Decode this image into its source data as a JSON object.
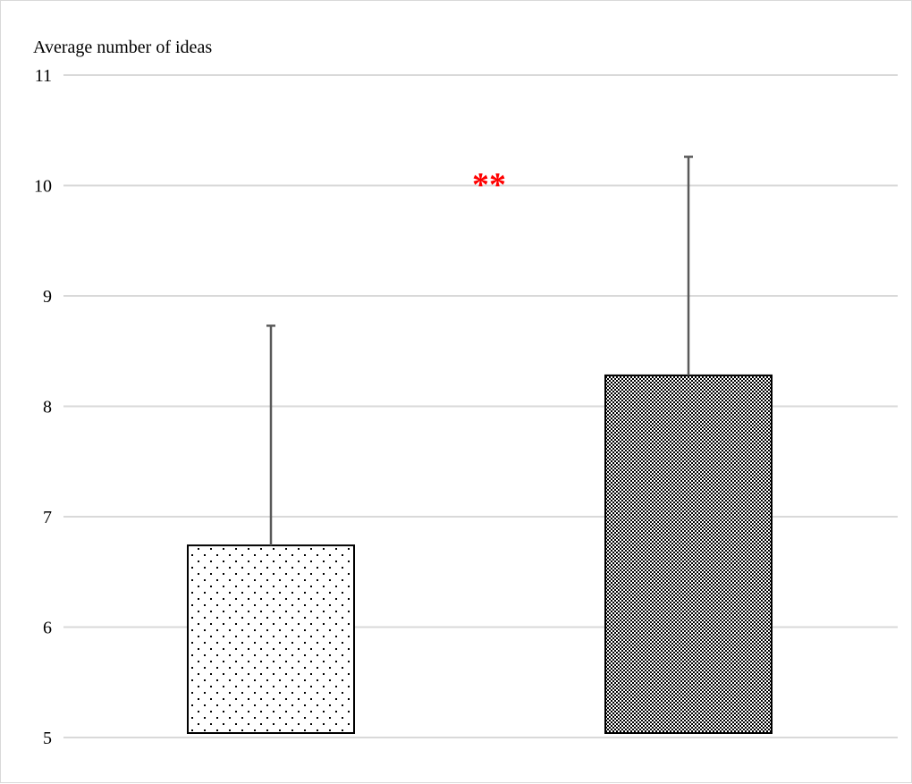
{
  "chart_data": {
    "type": "bar",
    "ylabel": "Average number of ideas",
    "ylim": [
      5,
      11
    ],
    "yticks": [
      "5",
      "6",
      "7",
      "8",
      "9",
      "10",
      "11"
    ],
    "grid": true,
    "categories": [
      "",
      ""
    ],
    "values": [
      6.74,
      8.28
    ],
    "error_upper": [
      8.73,
      10.26
    ],
    "bar_patterns": [
      "sparse-dots",
      "dense-checker"
    ],
    "annotation": {
      "text": "**",
      "color": "#ff0000"
    },
    "colors": {
      "grid": "#d9d9d9",
      "error_bar": "#595959",
      "bar_edge": "#000000"
    }
  }
}
